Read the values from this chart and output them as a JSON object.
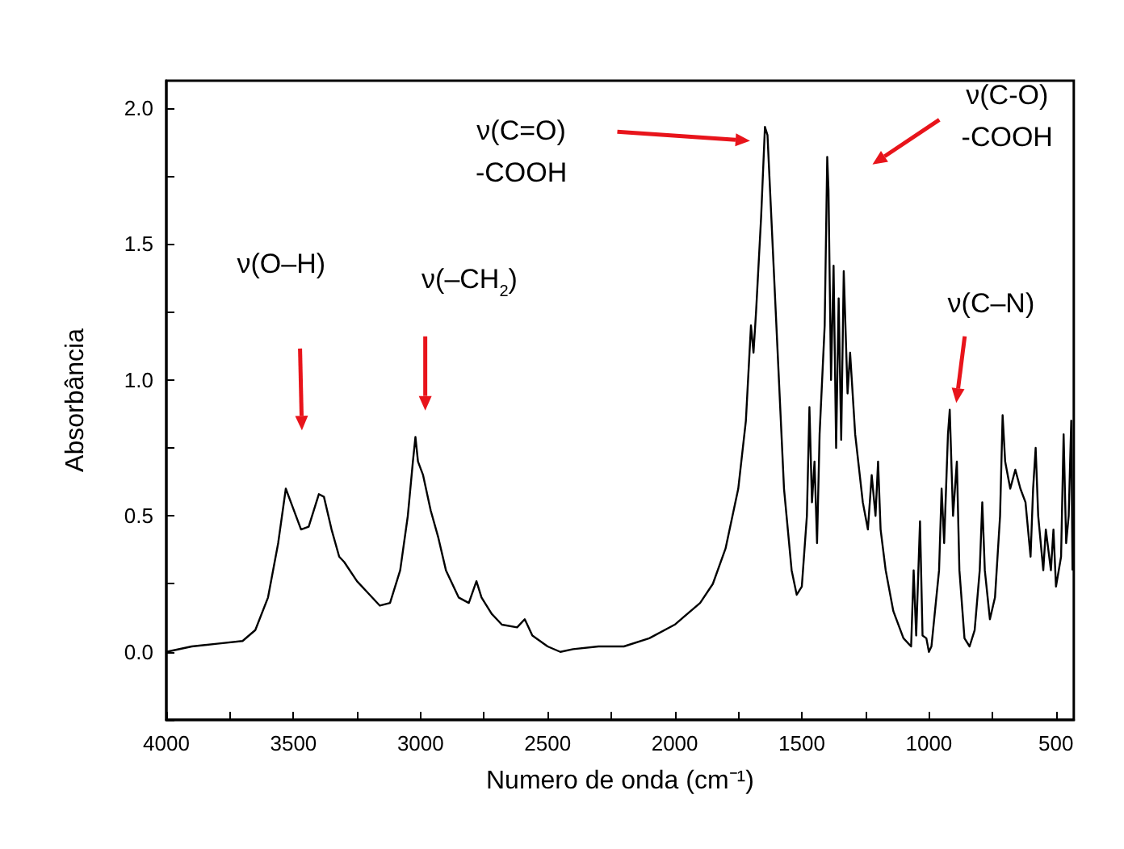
{
  "chart_data": {
    "type": "line",
    "xlabel": "Numero de onda (cm⁻¹)",
    "ylabel": "Absorbância",
    "xlim": [
      4000,
      430
    ],
    "ylim": [
      -0.25,
      2.1
    ],
    "xticks": [
      4000,
      {
        "value": 3750,
        "label": null
      },
      3500,
      {
        "value": 3250,
        "label": null
      },
      3000,
      {
        "value": 2750,
        "label": null
      },
      2500,
      {
        "value": 2250,
        "label": null
      },
      2000,
      {
        "value": 1750,
        "label": null
      },
      1500,
      {
        "value": 1250,
        "label": null
      },
      1000,
      {
        "value": 750,
        "label": null
      },
      500
    ],
    "yticks": [
      {
        "value": -0.25,
        "label": null
      },
      {
        "value": 0,
        "label": "0.0"
      },
      {
        "value": 0.25,
        "label": null
      },
      {
        "value": 0.5,
        "label": "0.5"
      },
      {
        "value": 0.75,
        "label": null
      },
      {
        "value": 1,
        "label": "1.0"
      },
      {
        "value": 1.25,
        "label": null
      },
      {
        "value": 1.5,
        "label": "1.5"
      },
      {
        "value": 1.75,
        "label": null
      },
      {
        "value": 2,
        "label": "2.0"
      }
    ],
    "grid": false,
    "marker": "none",
    "line_style": "solid",
    "x": [
      4000,
      3900,
      3800,
      3700,
      3650,
      3600,
      3560,
      3530,
      3510,
      3470,
      3440,
      3400,
      3380,
      3350,
      3320,
      3300,
      3250,
      3200,
      3160,
      3120,
      3080,
      3050,
      3030,
      3020,
      3010,
      2990,
      2960,
      2930,
      2900,
      2850,
      2810,
      2780,
      2760,
      2720,
      2680,
      2620,
      2590,
      2560,
      2500,
      2450,
      2400,
      2300,
      2200,
      2100,
      2000,
      1900,
      1850,
      1800,
      1750,
      1720,
      1700,
      1690,
      1680,
      1660,
      1645,
      1635,
      1620,
      1600,
      1570,
      1540,
      1520,
      1500,
      1480,
      1470,
      1460,
      1450,
      1440,
      1430,
      1410,
      1400,
      1395,
      1385,
      1375,
      1365,
      1355,
      1345,
      1335,
      1320,
      1310,
      1290,
      1260,
      1240,
      1225,
      1210,
      1200,
      1190,
      1170,
      1140,
      1100,
      1070,
      1060,
      1050,
      1035,
      1025,
      1010,
      1000,
      990,
      960,
      950,
      940,
      925,
      918,
      905,
      890,
      880,
      860,
      840,
      820,
      800,
      790,
      780,
      760,
      740,
      720,
      710,
      700,
      680,
      660,
      640,
      620,
      600,
      590,
      580,
      570,
      550,
      540,
      520,
      510,
      500,
      480,
      470,
      460,
      450,
      440,
      435
    ],
    "series": [
      {
        "color": "#000000",
        "values": [
          0,
          0.02,
          0.03,
          0.04,
          0.08,
          0.2,
          0.4,
          0.6,
          0.55,
          0.45,
          0.46,
          0.58,
          0.57,
          0.45,
          0.35,
          0.33,
          0.26,
          0.21,
          0.17,
          0.18,
          0.3,
          0.5,
          0.7,
          0.79,
          0.7,
          0.65,
          0.52,
          0.42,
          0.3,
          0.2,
          0.18,
          0.26,
          0.2,
          0.14,
          0.1,
          0.09,
          0.12,
          0.06,
          0.02,
          0,
          0.01,
          0.02,
          0.02,
          0.05,
          0.1,
          0.18,
          0.25,
          0.38,
          0.6,
          0.85,
          1.2,
          1.1,
          1.25,
          1.6,
          1.93,
          1.9,
          1.6,
          1.2,
          0.6,
          0.3,
          0.21,
          0.24,
          0.5,
          0.9,
          0.55,
          0.7,
          0.4,
          0.8,
          1.2,
          1.82,
          1.7,
          1,
          1.42,
          0.75,
          1.3,
          0.78,
          1.4,
          0.95,
          1.1,
          0.8,
          0.55,
          0.45,
          0.65,
          0.5,
          0.7,
          0.45,
          0.3,
          0.15,
          0.05,
          0.02,
          0.3,
          0.06,
          0.48,
          0.06,
          0.05,
          0,
          0.02,
          0.3,
          0.6,
          0.4,
          0.8,
          0.89,
          0.5,
          0.7,
          0.3,
          0.05,
          0.02,
          0.08,
          0.3,
          0.55,
          0.3,
          0.12,
          0.2,
          0.5,
          0.87,
          0.7,
          0.6,
          0.67,
          0.6,
          0.55,
          0.35,
          0.6,
          0.75,
          0.5,
          0.3,
          0.45,
          0.3,
          0.45,
          0.24,
          0.35,
          0.8,
          0.4,
          0.5,
          0.85,
          0.3
        ]
      }
    ],
    "annotations": [
      "ν(O–H)",
      "ν(–CH$_{2}$)",
      "ν(C=O)\n-COOH",
      "ν(C-O)\n-COOH",
      "ν(C–N)"
    ]
  }
}
